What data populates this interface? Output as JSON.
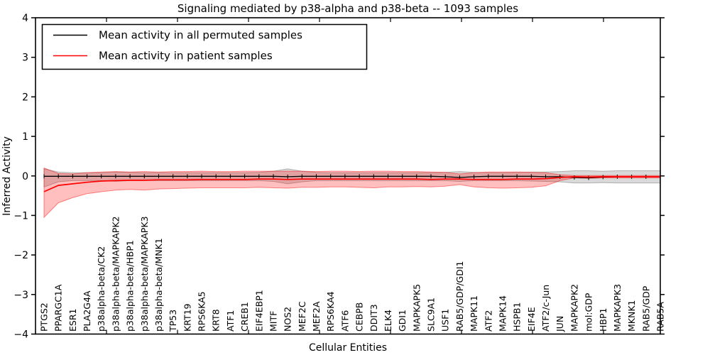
{
  "chart_data": {
    "type": "line",
    "title": "Signaling mediated by p38-alpha and p38-beta -- 1093 samples",
    "xlabel": "Cellular Entities",
    "ylabel": "Inferred Activity",
    "ylim": [
      -4,
      4
    ],
    "yticks": [
      4,
      3,
      2,
      1,
      0,
      -1,
      -2,
      -3,
      -4
    ],
    "grid": false,
    "legend_position": "upper left",
    "background_color": "#ffffff",
    "categories": [
      "PTGS2",
      "PPARGC1A",
      "ESR1",
      "PLA2G4A",
      "p38alpha-beta/CK2",
      "p38alpha-beta/MAPKAPK2",
      "p38alpha-beta/HBP1",
      "p38alpha-beta/MAPKAPK3",
      "p38alpha-beta/MNK1",
      "TP53",
      "KRT19",
      "RPS6KA5",
      "KRT8",
      "ATF1",
      "CREB1",
      "EIF4EBP1",
      "MITF",
      "NOS2",
      "MEF2C",
      "MEF2A",
      "RPS6KA4",
      "ATF6",
      "CEBPB",
      "DDIT3",
      "ELK4",
      "GDI1",
      "MAPKAPK5",
      "SLC9A1",
      "USF1",
      "RAB5/GDP/GDI1",
      "MAPK11",
      "ATF2",
      "MAPK14",
      "HSPB1",
      "EIF4E",
      "ATF2/c-Jun",
      "JUN",
      "MAPKAPK2",
      "mol:GDP",
      "HBP1",
      "MAPKAPK3",
      "MKNK1",
      "RAB5/GDP",
      "RAB5A"
    ],
    "series": [
      {
        "name": "Mean activity in all permuted samples",
        "color": "#000000",
        "band_color": "rgba(0,0,0,0.15)",
        "band_edge_color": "rgba(0,0,0,0.25)",
        "marker": "vertical-tick",
        "values": [
          -0.01,
          -0.01,
          -0.01,
          -0.01,
          -0.01,
          -0.01,
          -0.01,
          -0.01,
          -0.01,
          -0.01,
          -0.01,
          -0.01,
          -0.01,
          -0.01,
          -0.01,
          -0.01,
          -0.01,
          -0.02,
          -0.01,
          -0.01,
          -0.01,
          -0.01,
          -0.01,
          -0.01,
          -0.01,
          -0.01,
          -0.01,
          -0.01,
          -0.02,
          -0.04,
          -0.02,
          -0.01,
          -0.01,
          -0.01,
          -0.01,
          -0.02,
          -0.02,
          -0.04,
          -0.05,
          -0.03,
          -0.02,
          -0.02,
          -0.02,
          -0.02
        ],
        "band_upper": [
          0.18,
          0.1,
          0.08,
          0.08,
          0.08,
          0.1,
          0.09,
          0.08,
          0.08,
          0.08,
          0.08,
          0.08,
          0.08,
          0.08,
          0.08,
          0.09,
          0.12,
          0.18,
          0.12,
          0.09,
          0.08,
          0.08,
          0.08,
          0.08,
          0.08,
          0.08,
          0.08,
          0.08,
          0.09,
          0.11,
          0.09,
          0.08,
          0.08,
          0.09,
          0.1,
          0.1,
          0.11,
          0.13,
          0.13,
          0.12,
          0.13,
          0.13,
          0.13,
          0.13
        ],
        "band_lower": [
          -0.28,
          -0.15,
          -0.12,
          -0.12,
          -0.12,
          -0.14,
          -0.12,
          -0.12,
          -0.12,
          -0.12,
          -0.12,
          -0.12,
          -0.12,
          -0.12,
          -0.12,
          -0.12,
          -0.14,
          -0.2,
          -0.15,
          -0.12,
          -0.12,
          -0.12,
          -0.12,
          -0.12,
          -0.12,
          -0.12,
          -0.12,
          -0.12,
          -0.12,
          -0.14,
          -0.12,
          -0.12,
          -0.12,
          -0.12,
          -0.13,
          -0.14,
          -0.15,
          -0.18,
          -0.18,
          -0.17,
          -0.18,
          -0.18,
          -0.18,
          -0.18
        ]
      },
      {
        "name": "Mean activity in patient samples",
        "color": "#ff0000",
        "band_color": "rgba(255,0,0,0.25)",
        "band_edge_color": "rgba(255,0,0,0.45)",
        "marker": "none",
        "values": [
          -0.4,
          -0.24,
          -0.2,
          -0.16,
          -0.13,
          -0.12,
          -0.11,
          -0.11,
          -0.1,
          -0.1,
          -0.1,
          -0.09,
          -0.09,
          -0.09,
          -0.09,
          -0.08,
          -0.08,
          -0.09,
          -0.08,
          -0.08,
          -0.08,
          -0.08,
          -0.08,
          -0.08,
          -0.08,
          -0.08,
          -0.08,
          -0.09,
          -0.08,
          -0.08,
          -0.09,
          -0.09,
          -0.09,
          -0.08,
          -0.08,
          -0.07,
          -0.04,
          -0.02,
          -0.03,
          -0.02,
          -0.02,
          -0.02,
          -0.02,
          -0.02
        ],
        "band_upper": [
          0.2,
          0.06,
          0.05,
          0.08,
          0.1,
          0.11,
          0.1,
          0.11,
          0.1,
          0.11,
          0.11,
          0.12,
          0.11,
          0.11,
          0.12,
          0.12,
          0.12,
          0.12,
          0.12,
          0.11,
          0.12,
          0.12,
          0.11,
          0.12,
          0.12,
          0.11,
          0.11,
          0.1,
          0.09,
          0.05,
          0.08,
          0.1,
          0.1,
          0.1,
          0.09,
          0.08,
          0.03,
          0.01,
          0.01,
          0.01,
          0.01,
          0.01,
          0.01,
          0.01
        ],
        "band_lower": [
          -1.05,
          -0.68,
          -0.55,
          -0.45,
          -0.4,
          -0.36,
          -0.34,
          -0.36,
          -0.33,
          -0.32,
          -0.31,
          -0.3,
          -0.3,
          -0.3,
          -0.3,
          -0.29,
          -0.3,
          -0.31,
          -0.29,
          -0.29,
          -0.28,
          -0.28,
          -0.29,
          -0.3,
          -0.28,
          -0.28,
          -0.27,
          -0.28,
          -0.26,
          -0.22,
          -0.28,
          -0.3,
          -0.31,
          -0.3,
          -0.29,
          -0.25,
          -0.12,
          -0.05,
          -0.06,
          -0.05,
          -0.05,
          -0.05,
          -0.05,
          -0.05
        ]
      }
    ]
  }
}
